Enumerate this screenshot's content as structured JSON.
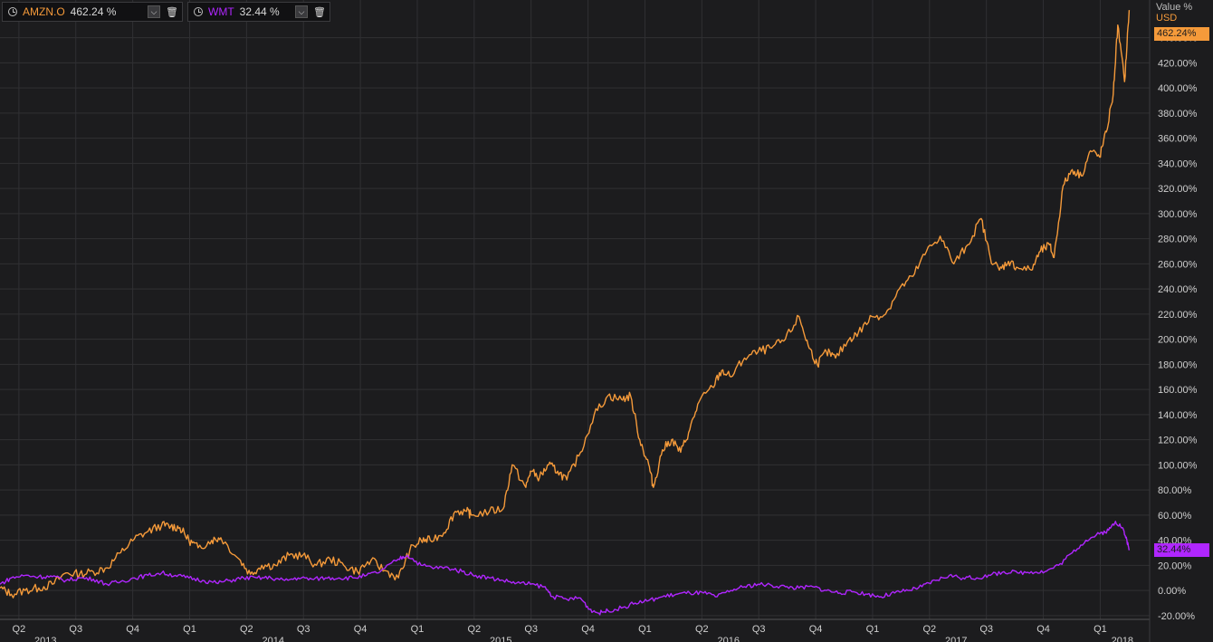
{
  "legend": [
    {
      "ticker": "AMZN.O",
      "value": "462.24 %",
      "color": "#f59a3a"
    },
    {
      "ticker": "WMT",
      "value": "32.44 %",
      "color": "#b026ff"
    }
  ],
  "axis_header": {
    "title": "Value %",
    "currency": "USD"
  },
  "last_labels": {
    "amzn": "462.24%",
    "wmt": "32.44%"
  },
  "chart_data": {
    "type": "line",
    "yticks": [
      "440.00%",
      "420.00%",
      "400.00%",
      "380.00%",
      "360.00%",
      "340.00%",
      "320.00%",
      "300.00%",
      "280.00%",
      "260.00%",
      "240.00%",
      "220.00%",
      "200.00%",
      "180.00%",
      "160.00%",
      "140.00%",
      "120.00%",
      "100.00%",
      "80.00%",
      "60.00%",
      "40.00%",
      "20.00%",
      "0.00%",
      "-20.00%"
    ],
    "ylim": [
      -23,
      470
    ],
    "xlim": [
      2013.25,
      2018.3
    ],
    "quarter_ticks": [
      {
        "x": 2013.333,
        "label": "Q2"
      },
      {
        "x": 2013.583,
        "label": "Q3"
      },
      {
        "x": 2013.833,
        "label": "Q4"
      },
      {
        "x": 2014.083,
        "label": "Q1"
      },
      {
        "x": 2014.333,
        "label": "Q2"
      },
      {
        "x": 2014.583,
        "label": "Q3"
      },
      {
        "x": 2014.833,
        "label": "Q4"
      },
      {
        "x": 2015.083,
        "label": "Q1"
      },
      {
        "x": 2015.333,
        "label": "Q2"
      },
      {
        "x": 2015.583,
        "label": "Q3"
      },
      {
        "x": 2015.833,
        "label": "Q4"
      },
      {
        "x": 2016.083,
        "label": "Q1"
      },
      {
        "x": 2016.333,
        "label": "Q2"
      },
      {
        "x": 2016.583,
        "label": "Q3"
      },
      {
        "x": 2016.833,
        "label": "Q4"
      },
      {
        "x": 2017.083,
        "label": "Q1"
      },
      {
        "x": 2017.333,
        "label": "Q2"
      },
      {
        "x": 2017.583,
        "label": "Q3"
      },
      {
        "x": 2017.833,
        "label": "Q4"
      },
      {
        "x": 2018.083,
        "label": "Q1"
      }
    ],
    "year_ticks": [
      {
        "x": 2013.45,
        "label": "2013"
      },
      {
        "x": 2014.45,
        "label": "2014"
      },
      {
        "x": 2015.45,
        "label": "2015"
      },
      {
        "x": 2016.45,
        "label": "2016"
      },
      {
        "x": 2017.45,
        "label": "2017"
      },
      {
        "x": 2018.18,
        "label": "2018"
      }
    ],
    "series": [
      {
        "name": "AMZN.O",
        "color": "#f59a3a",
        "x": [
          2013.25,
          2013.3,
          2013.36,
          2013.42,
          2013.48,
          2013.54,
          2013.6,
          2013.66,
          2013.72,
          2013.78,
          2013.84,
          2013.9,
          2013.96,
          2014.0,
          2014.04,
          2014.08,
          2014.12,
          2014.18,
          2014.22,
          2014.3,
          2014.35,
          2014.4,
          2014.46,
          2014.52,
          2014.58,
          2014.64,
          2014.7,
          2014.76,
          2014.82,
          2014.88,
          2014.94,
          2015.0,
          2015.05,
          2015.1,
          2015.14,
          2015.2,
          2015.25,
          2015.3,
          2015.32,
          2015.4,
          2015.46,
          2015.5,
          2015.56,
          2015.58,
          2015.62,
          2015.66,
          2015.7,
          2015.74,
          2015.8,
          2015.86,
          2015.92,
          2015.98,
          2016.02,
          2016.06,
          2016.1,
          2016.12,
          2016.16,
          2016.2,
          2016.24,
          2016.28,
          2016.32,
          2016.38,
          2016.42,
          2016.46,
          2016.52,
          2016.58,
          2016.64,
          2016.7,
          2016.76,
          2016.8,
          2016.84,
          2016.88,
          2016.92,
          2016.98,
          2017.02,
          2017.08,
          2017.14,
          2017.2,
          2017.26,
          2017.32,
          2017.38,
          2017.44,
          2017.5,
          2017.56,
          2017.6,
          2017.64,
          2017.68,
          2017.72,
          2017.78,
          2017.82,
          2017.86,
          2017.88,
          2017.92,
          2017.96,
          2018.0,
          2018.04,
          2018.08,
          2018.11,
          2018.14,
          2018.16,
          2018.19,
          2018.21
        ],
        "y": [
          2,
          -3,
          0,
          2,
          5,
          14,
          13,
          15,
          18,
          30,
          41,
          47,
          52,
          51,
          50,
          40,
          34,
          40,
          42,
          25,
          13,
          20,
          20,
          28,
          28,
          20,
          25,
          20,
          15,
          24,
          16,
          10,
          32,
          40,
          40,
          46,
          63,
          63,
          60,
          63,
          65,
          100,
          82,
          95,
          90,
          100,
          95,
          88,
          110,
          140,
          155,
          152,
          155,
          120,
          100,
          82,
          112,
          120,
          110,
          128,
          150,
          162,
          175,
          170,
          185,
          190,
          193,
          200,
          218,
          195,
          180,
          190,
          185,
          200,
          205,
          218,
          220,
          240,
          250,
          270,
          282,
          260,
          275,
          296,
          265,
          255,
          262,
          257,
          255,
          270,
          275,
          265,
          322,
          335,
          330,
          350,
          345,
          365,
          395,
          450,
          405,
          462
        ]
      },
      {
        "name": "WMT",
        "color": "#b026ff",
        "x": [
          2013.25,
          2013.3,
          2013.36,
          2013.42,
          2013.48,
          2013.54,
          2013.6,
          2013.66,
          2013.72,
          2013.78,
          2013.84,
          2013.9,
          2013.96,
          2014.02,
          2014.08,
          2014.14,
          2014.2,
          2014.26,
          2014.32,
          2014.38,
          2014.44,
          2014.5,
          2014.56,
          2014.62,
          2014.68,
          2014.74,
          2014.8,
          2014.86,
          2014.92,
          2015.0,
          2015.04,
          2015.1,
          2015.16,
          2015.22,
          2015.28,
          2015.34,
          2015.4,
          2015.46,
          2015.52,
          2015.58,
          2015.64,
          2015.68,
          2015.74,
          2015.8,
          2015.84,
          2015.88,
          2015.92,
          2015.98,
          2016.04,
          2016.1,
          2016.16,
          2016.22,
          2016.28,
          2016.34,
          2016.4,
          2016.46,
          2016.52,
          2016.58,
          2016.64,
          2016.7,
          2016.76,
          2016.82,
          2016.88,
          2016.94,
          2017.0,
          2017.06,
          2017.12,
          2017.18,
          2017.24,
          2017.3,
          2017.36,
          2017.42,
          2017.48,
          2017.54,
          2017.6,
          2017.66,
          2017.72,
          2017.78,
          2017.84,
          2017.9,
          2017.96,
          2018.02,
          2018.08,
          2018.12,
          2018.15,
          2018.18,
          2018.2,
          2018.21
        ],
        "y": [
          5,
          10,
          12,
          11,
          11,
          8,
          10,
          9,
          5,
          7,
          10,
          12,
          14,
          12,
          10,
          8,
          6,
          8,
          10,
          10,
          10,
          8,
          10,
          9,
          10,
          10,
          10,
          12,
          15,
          25,
          28,
          20,
          18,
          18,
          15,
          12,
          10,
          8,
          6,
          5,
          3,
          -5,
          -7,
          -6,
          -15,
          -18,
          -16,
          -14,
          -10,
          -8,
          -5,
          -3,
          -2,
          -2,
          -5,
          0,
          3,
          5,
          4,
          3,
          2,
          3,
          0,
          -2,
          -1,
          -3,
          -5,
          -2,
          0,
          3,
          8,
          12,
          10,
          10,
          12,
          15,
          14,
          15,
          15,
          20,
          30,
          40,
          45,
          48,
          55,
          50,
          40,
          32
        ]
      }
    ]
  }
}
